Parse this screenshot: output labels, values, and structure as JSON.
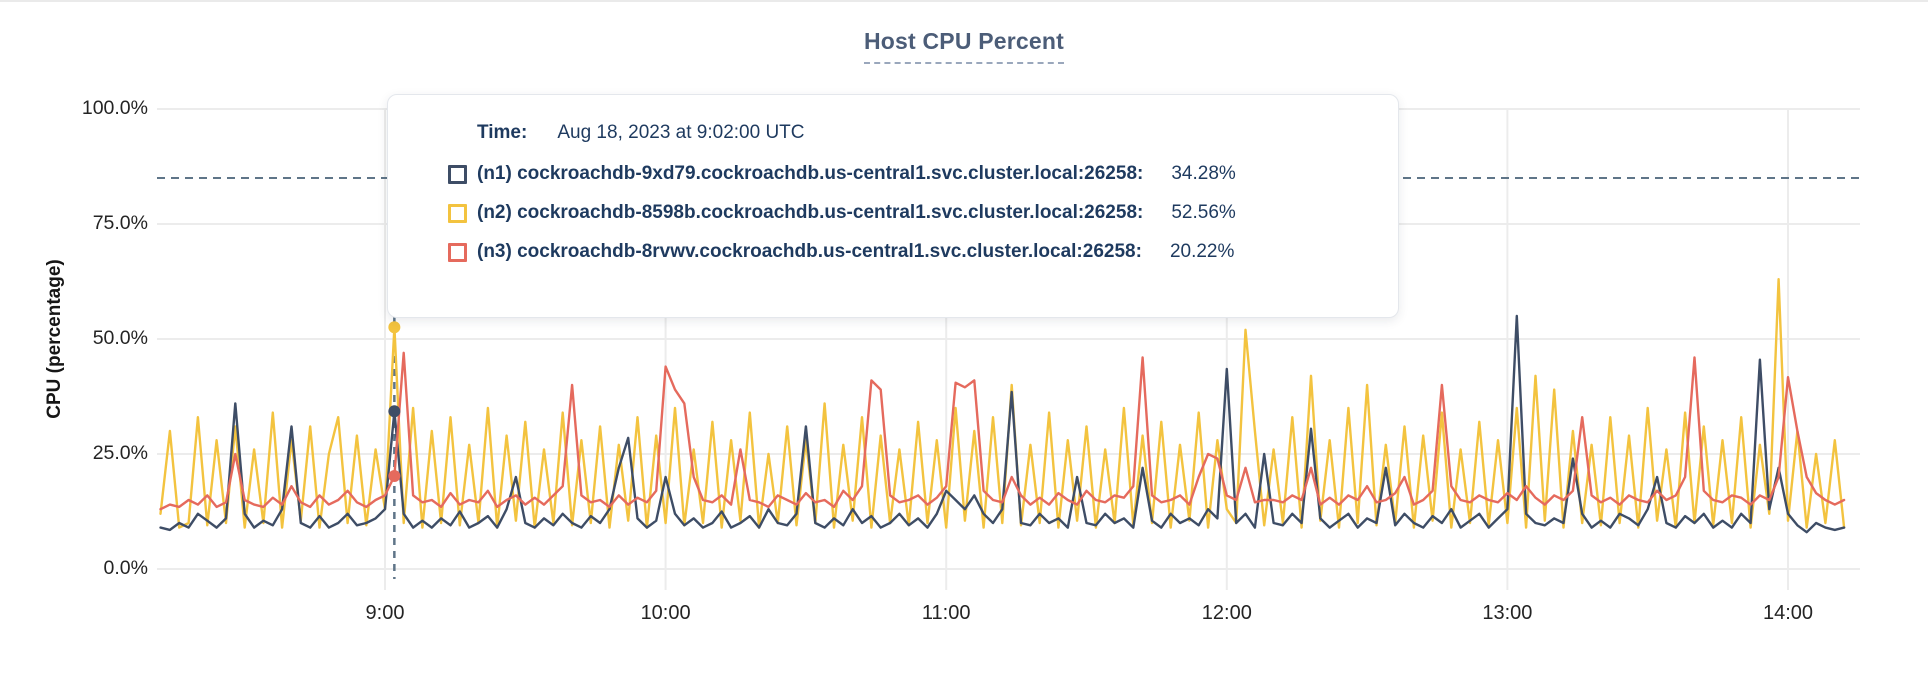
{
  "page": {
    "title": "Host CPU Percent"
  },
  "tooltip": {
    "time_label": "Time:",
    "time_value": "Aug 18, 2023 at 9:02:00 UTC",
    "rows": [
      {
        "value": "34.28%"
      },
      {
        "value": "52.56%"
      },
      {
        "value": "20.22%"
      }
    ]
  },
  "chart_data": {
    "type": "line",
    "title": "Host CPU Percent",
    "ylabel": "CPU (percentage)",
    "ylim": [
      0,
      100
    ],
    "grid": true,
    "y_ticks": [
      {
        "value": 0,
        "label": "0.0%"
      },
      {
        "value": 25,
        "label": "25.0%"
      },
      {
        "value": 50,
        "label": "50.0%"
      },
      {
        "value": 75,
        "label": "75.0%"
      },
      {
        "value": 100,
        "label": "100.0%"
      }
    ],
    "x_ticks": [
      {
        "minutes": 540,
        "label": "9:00"
      },
      {
        "minutes": 600,
        "label": "10:00"
      },
      {
        "minutes": 660,
        "label": "11:00"
      },
      {
        "minutes": 720,
        "label": "12:00"
      },
      {
        "minutes": 780,
        "label": "13:00"
      },
      {
        "minutes": 840,
        "label": "14:00"
      }
    ],
    "x_start_minutes": 492,
    "x_step_minutes": 2,
    "threshold_value": 85,
    "colors": {
      "grid": "#ECECEC",
      "dashed": "#5F7588",
      "text": "#242424"
    },
    "crosshair": {
      "minutes": 542,
      "time_text": "Aug 18, 2023 at 9:02:00 UTC",
      "values": [
        34.28,
        52.56,
        20.22
      ]
    },
    "series": [
      {
        "name": "n1",
        "label": "(n1) cockroachdb-9xd79.cockroachdb.us-central1.svc.cluster.local:26258:",
        "color": "#3E4D66",
        "tooltip_value": "34.28%",
        "values": [
          9,
          8.5,
          10,
          9,
          12,
          10.5,
          9,
          11,
          36,
          12,
          9,
          10.5,
          9.5,
          13,
          31,
          10,
          9,
          11.5,
          9,
          10,
          12,
          9.5,
          10,
          11,
          13,
          34.28,
          12,
          9,
          10.5,
          9,
          11,
          9.5,
          12.5,
          9,
          10,
          11.5,
          9,
          13,
          20,
          10,
          9,
          11,
          9.5,
          12,
          10,
          9,
          11.5,
          10,
          13,
          22,
          28.5,
          11,
          9,
          10.5,
          20,
          12,
          9.5,
          11,
          9,
          10,
          12.5,
          9,
          10,
          11.5,
          9,
          13,
          10,
          9.5,
          12,
          31,
          10,
          9,
          11,
          9.5,
          13,
          10,
          11.5,
          9,
          10,
          12,
          9.5,
          11,
          9,
          12,
          17,
          15,
          13,
          16,
          12,
          10,
          13,
          38.5,
          10,
          9.5,
          12,
          10,
          11,
          9,
          20,
          10,
          9.5,
          12,
          10,
          11,
          9,
          22,
          10.5,
          9,
          12,
          10,
          11,
          9.5,
          13,
          11,
          43.5,
          10,
          12,
          9,
          25,
          10,
          9.5,
          12,
          10,
          30.5,
          11,
          9,
          10.5,
          12,
          9,
          11,
          10,
          22,
          9.5,
          12,
          10,
          9,
          11.5,
          10,
          13,
          9,
          10.5,
          12,
          9,
          11,
          13,
          55,
          12,
          10,
          9.5,
          11,
          10,
          24,
          12,
          9,
          10.5,
          9,
          12,
          11,
          9.5,
          13,
          20,
          10,
          9,
          11.5,
          10,
          12,
          9,
          10.5,
          9,
          12,
          10,
          45.5,
          13,
          22,
          12,
          9.5,
          8,
          10,
          9,
          8.5,
          9
        ]
      },
      {
        "name": "n2",
        "label": "(n2) cockroachdb-8598b.cockroachdb.us-central1.svc.cluster.local:26258:",
        "color": "#F3C33F",
        "tooltip_value": "52.56%",
        "values": [
          12,
          30,
          9,
          10,
          33,
          9.5,
          28,
          10,
          31,
          9,
          26,
          10,
          34,
          9,
          28,
          10.5,
          31,
          9,
          25,
          33,
          10,
          29,
          9.5,
          26,
          13,
          52.56,
          10,
          35,
          9,
          30,
          10,
          33,
          9.5,
          27,
          10,
          35,
          9,
          29,
          10.5,
          32,
          9,
          26,
          10,
          34,
          9.5,
          28,
          10,
          31,
          9,
          27,
          10.5,
          33,
          9,
          29,
          10,
          35,
          9.5,
          26,
          10,
          32,
          9,
          28,
          10.5,
          34,
          9,
          25,
          10,
          31,
          9.5,
          28,
          10,
          36,
          9,
          27,
          10.5,
          33,
          9,
          29,
          10,
          26,
          9.5,
          32,
          10,
          28,
          9,
          35,
          10.5,
          30,
          9,
          33,
          10,
          40,
          9.5,
          27,
          10,
          34,
          9,
          28,
          10.5,
          31,
          9,
          26,
          10,
          35,
          9.5,
          29,
          10,
          32,
          9,
          27,
          10.5,
          34,
          9,
          28,
          13,
          10,
          52,
          30,
          9.5,
          26,
          10,
          33,
          9,
          42,
          10.5,
          28,
          9,
          35,
          10,
          40,
          9.5,
          27,
          10,
          31,
          9,
          29,
          10.5,
          34,
          9,
          26,
          10,
          32,
          9.5,
          28,
          10,
          35,
          9,
          42,
          10.5,
          39,
          9,
          30,
          10,
          27,
          9.5,
          33,
          10,
          29,
          9,
          35,
          10.5,
          26,
          9,
          34,
          10,
          31,
          9.5,
          28,
          10,
          33,
          9,
          27,
          12,
          63,
          10.5,
          30,
          9,
          25,
          10,
          28,
          9
        ]
      },
      {
        "name": "n3",
        "label": "(n3) cockroachdb-8rvwv.cockroachdb.us-central1.svc.cluster.local:26258:",
        "color": "#E56A5D",
        "tooltip_value": "20.22%",
        "values": [
          13,
          14,
          13.5,
          15,
          14,
          16,
          13.5,
          14.5,
          25,
          15,
          14,
          13.5,
          15.5,
          14,
          18,
          14.5,
          13.5,
          16,
          14,
          15,
          17,
          14.5,
          13.5,
          15,
          16,
          20.22,
          47,
          16,
          14.5,
          15,
          13.5,
          16.5,
          14,
          15,
          14.5,
          17,
          13.5,
          15,
          16,
          14,
          15.5,
          14,
          16,
          18,
          40,
          16,
          14.5,
          15,
          13.5,
          16,
          14,
          15.5,
          14.5,
          17,
          44,
          39,
          36,
          20,
          15,
          14.5,
          16,
          14,
          26,
          15,
          14.5,
          13.5,
          16,
          15,
          14,
          16.5,
          14.5,
          15,
          13.5,
          17,
          15,
          18,
          41,
          39,
          16,
          14.5,
          15,
          16,
          14,
          15.5,
          18,
          40.5,
          39.5,
          41,
          17,
          15,
          14.5,
          20,
          16,
          14,
          15.5,
          14,
          16.5,
          15,
          14,
          17,
          15,
          14.5,
          16,
          15.5,
          18,
          46,
          16,
          14.5,
          15,
          16,
          14,
          20,
          25,
          24,
          16,
          15,
          22,
          14.5,
          15,
          15,
          14.5,
          16,
          15,
          22,
          14,
          15.5,
          14,
          16,
          15,
          18,
          14.5,
          15,
          16.5,
          20,
          14,
          15,
          17,
          40,
          18,
          15,
          14.5,
          16,
          15,
          14.5,
          16.5,
          15,
          18,
          15.5,
          14,
          16,
          15,
          17,
          33,
          16,
          14.5,
          15.5,
          14,
          16,
          15,
          14.5,
          17,
          15,
          16,
          20,
          46,
          17,
          15,
          14.5,
          16,
          15.5,
          14,
          16,
          15,
          20,
          41.7,
          30,
          20,
          16.5,
          15,
          14,
          15
        ]
      }
    ]
  }
}
